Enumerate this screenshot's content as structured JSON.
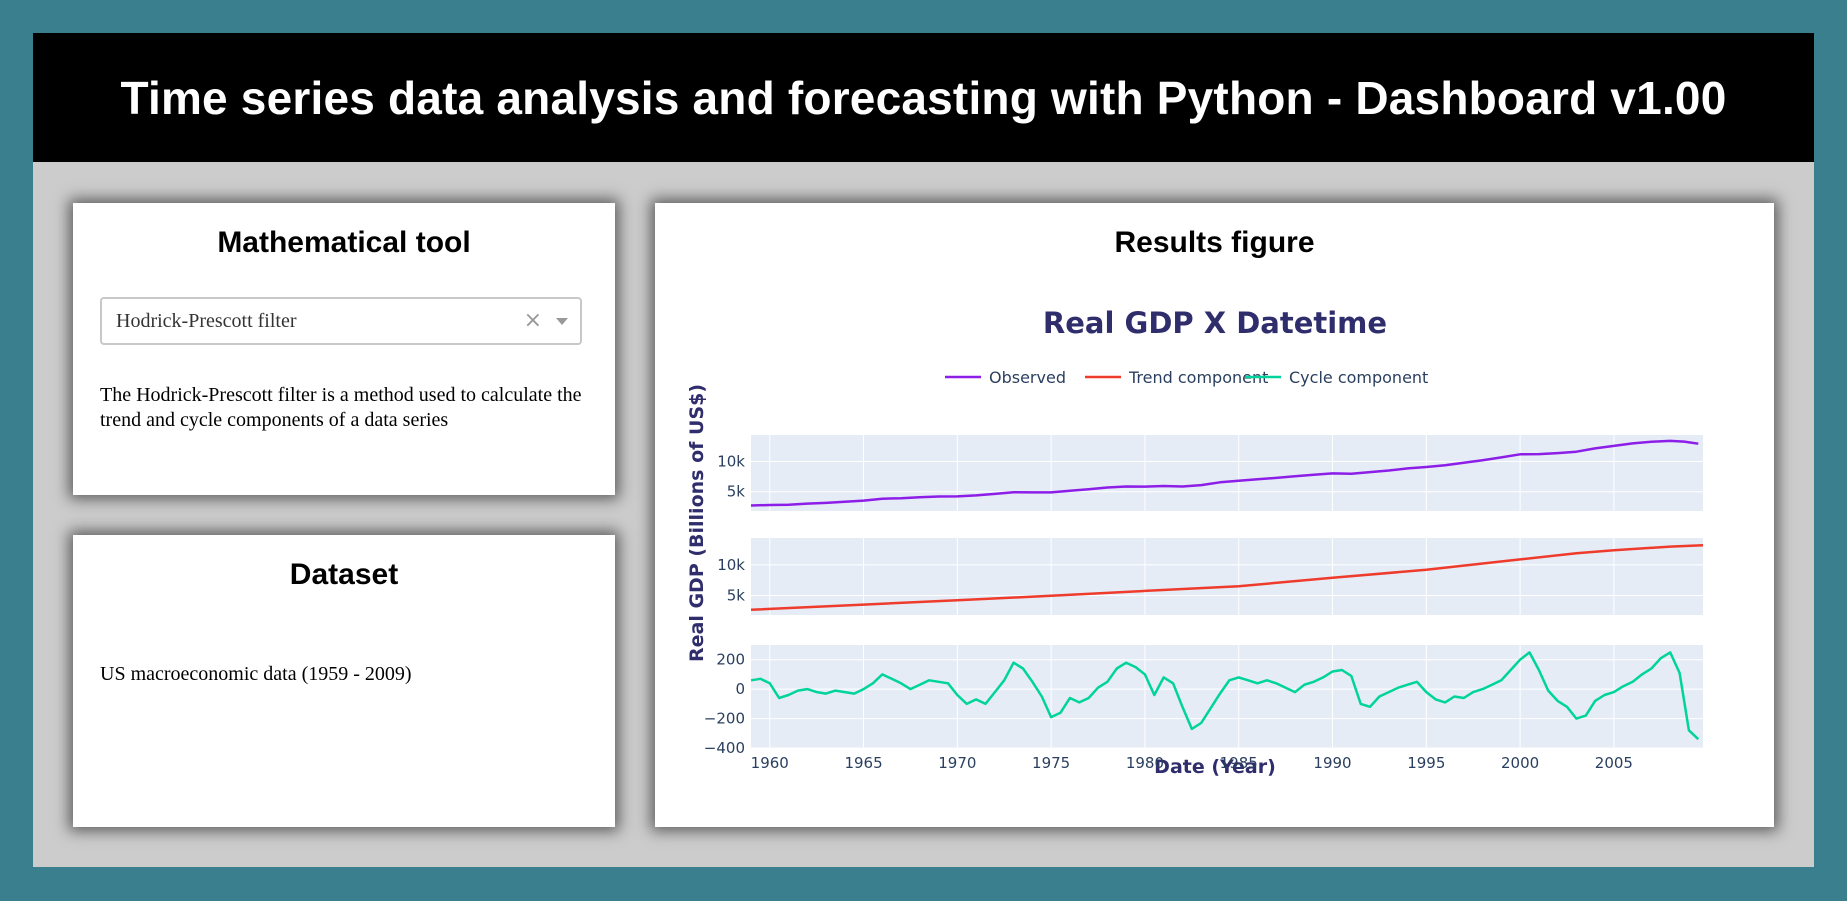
{
  "header": {
    "title": "Time series data analysis and forecasting with Python - Dashboard v1.00"
  },
  "tool_card": {
    "title": "Mathematical tool",
    "dropdown": {
      "selected": "Hodrick-Prescott filter",
      "clear_icon": "×"
    },
    "description": "The Hodrick-Prescott filter is a method used to calculate the trend and cycle components of a data series"
  },
  "dataset_card": {
    "title": "Dataset",
    "value": "US macroeconomic data (1959 - 2009)"
  },
  "results_card": {
    "title": "Results figure"
  },
  "colors": {
    "observed": "#8c1ee8",
    "trend": "#ef3b2c",
    "cycle": "#00d49a",
    "plot_bg": "#e5ecf6",
    "axis_text": "#2a3f5f",
    "title_text": "#2f2d6b"
  },
  "chart_data": {
    "type": "line",
    "title": "Real GDP X Datetime",
    "xlabel": "Date (Year)",
    "ylabel": "Real GDP (Billions of US$)",
    "legend": [
      "Observed",
      "Trend component",
      "Cycle component"
    ],
    "legend_position": "top-center",
    "grid": true,
    "x_ticks": [
      "1960",
      "1965",
      "1970",
      "1975",
      "1980",
      "1985",
      "1990",
      "1995",
      "2000",
      "2005"
    ],
    "xlim": [
      1959.0,
      2009.75
    ],
    "panels": [
      {
        "series": "Observed",
        "ylim": [
          1800,
          14400
        ],
        "y_ticks": [
          {
            "v": 5000,
            "label": "5k"
          },
          {
            "v": 10000,
            "label": "10k"
          }
        ],
        "x": [
          1959,
          1960,
          1961,
          1962,
          1963,
          1964,
          1965,
          1966,
          1967,
          1968,
          1969,
          1970,
          1971,
          1972,
          1973,
          1974,
          1975,
          1976,
          1977,
          1978,
          1979,
          1980,
          1981,
          1982,
          1983,
          1984,
          1985,
          1986,
          1987,
          1988,
          1989,
          1990,
          1991,
          1992,
          1993,
          1994,
          1995,
          1996,
          1997,
          1998,
          1999,
          2000,
          2001,
          2002,
          2003,
          2004,
          2005,
          2006,
          2007,
          2008,
          2008.75,
          2009.5
        ],
        "y": [
          2710,
          2800,
          2850,
          3020,
          3140,
          3320,
          3520,
          3840,
          3930,
          4080,
          4200,
          4220,
          4380,
          4640,
          4920,
          4890,
          4880,
          5150,
          5400,
          5700,
          5860,
          5840,
          5950,
          5870,
          6100,
          6550,
          6800,
          7050,
          7290,
          7560,
          7820,
          8030,
          7980,
          8250,
          8520,
          8860,
          9090,
          9390,
          9800,
          10220,
          10690,
          11200,
          11230,
          11400,
          11630,
          12180,
          12600,
          13000,
          13270,
          13430,
          13300,
          12950
        ]
      },
      {
        "series": "Trend component",
        "ylim": [
          1800,
          14400
        ],
        "y_ticks": [
          {
            "v": 5000,
            "label": "5k"
          },
          {
            "v": 10000,
            "label": "10k"
          }
        ],
        "x": [
          1959,
          1965,
          1970,
          1975,
          1980,
          1985,
          1990,
          1995,
          2000,
          2003,
          2005,
          2008,
          2009.75
        ],
        "y": [
          2650,
          3500,
          4200,
          4950,
          5750,
          6500,
          7900,
          9200,
          10900,
          11900,
          12400,
          13000,
          13200
        ]
      },
      {
        "series": "Cycle component",
        "ylim": [
          -400,
          300
        ],
        "y_ticks": [
          {
            "v": 200,
            "label": "200"
          },
          {
            "v": 0,
            "label": "0"
          },
          {
            "v": -200,
            "label": "−200"
          },
          {
            "v": -400,
            "label": "−400"
          }
        ],
        "x": [
          1959.0,
          1959.5,
          1960.0,
          1960.5,
          1961.0,
          1961.5,
          1962.0,
          1962.5,
          1963.0,
          1963.5,
          1964.0,
          1964.5,
          1965.0,
          1965.5,
          1966.0,
          1966.5,
          1967.0,
          1967.5,
          1968.0,
          1968.5,
          1969.0,
          1969.5,
          1970.0,
          1970.5,
          1971.0,
          1971.5,
          1972.0,
          1972.5,
          1973.0,
          1973.5,
          1974.0,
          1974.5,
          1975.0,
          1975.5,
          1976.0,
          1976.5,
          1977.0,
          1977.5,
          1978.0,
          1978.5,
          1979.0,
          1979.5,
          1980.0,
          1980.5,
          1981.0,
          1981.5,
          1982.0,
          1982.5,
          1983.0,
          1983.5,
          1984.0,
          1984.5,
          1985.0,
          1985.5,
          1986.0,
          1986.5,
          1987.0,
          1987.5,
          1988.0,
          1988.5,
          1989.0,
          1989.5,
          1990.0,
          1990.5,
          1991.0,
          1991.5,
          1992.0,
          1992.5,
          1993.0,
          1993.5,
          1994.0,
          1994.5,
          1995.0,
          1995.5,
          1996.0,
          1996.5,
          1997.0,
          1997.5,
          1998.0,
          1998.5,
          1999.0,
          1999.5,
          2000.0,
          2000.5,
          2001.0,
          2001.5,
          2002.0,
          2002.5,
          2003.0,
          2003.5,
          2004.0,
          2004.5,
          2005.0,
          2005.5,
          2006.0,
          2006.5,
          2007.0,
          2007.5,
          2008.0,
          2008.5,
          2009.0,
          2009.5
        ],
        "y": [
          60,
          70,
          40,
          -60,
          -40,
          -10,
          0,
          -20,
          -30,
          -10,
          -20,
          -30,
          0,
          40,
          100,
          70,
          40,
          0,
          30,
          60,
          50,
          40,
          -40,
          -100,
          -70,
          -100,
          -20,
          60,
          180,
          140,
          50,
          -50,
          -190,
          -160,
          -60,
          -90,
          -60,
          10,
          50,
          140,
          180,
          150,
          100,
          -40,
          80,
          40,
          -120,
          -270,
          -230,
          -130,
          -30,
          60,
          80,
          60,
          40,
          60,
          40,
          10,
          -20,
          30,
          50,
          80,
          120,
          130,
          90,
          -100,
          -120,
          -50,
          -20,
          10,
          30,
          50,
          -20,
          -70,
          -90,
          -50,
          -60,
          -20,
          0,
          30,
          60,
          130,
          200,
          250,
          130,
          -10,
          -80,
          -120,
          -200,
          -180,
          -80,
          -40,
          -20,
          20,
          50,
          100,
          140,
          210,
          250,
          110,
          -280,
          -340
        ]
      }
    ]
  }
}
